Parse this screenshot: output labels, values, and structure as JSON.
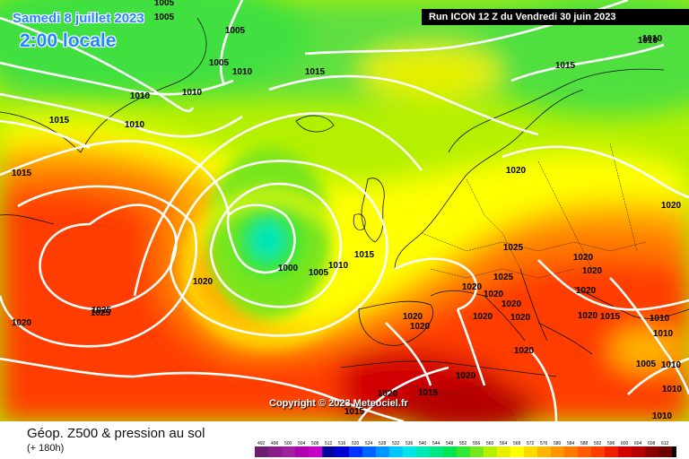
{
  "header": {
    "valid_date": "Samedi 8 juillet 2023",
    "local_time": "2:00 locale",
    "run_info": "Run ICON 12 Z du Vendredi 30 juin 2023"
  },
  "copyright": "Copyright © 2023 Meteociel.fr",
  "footer": {
    "field_title": "Géop. Z500 & pression au sol",
    "forecast_hour": "(+ 180h)"
  },
  "legend": {
    "values": [
      "492",
      "496",
      "500",
      "504",
      "508",
      "512",
      "516",
      "520",
      "524",
      "528",
      "532",
      "536",
      "540",
      "544",
      "548",
      "552",
      "556",
      "560",
      "564",
      "568",
      "572",
      "576",
      "580",
      "584",
      "588",
      "592",
      "596",
      "600",
      "604",
      "608",
      "612"
    ],
    "colors": [
      "#6e1e6e",
      "#8a1d8a",
      "#a020a0",
      "#b000b0",
      "#c800c8",
      "#0000a0",
      "#0000d0",
      "#0032ff",
      "#0064ff",
      "#0096ff",
      "#00c8ff",
      "#00e6e6",
      "#00e6b4",
      "#00e680",
      "#00e650",
      "#32e632",
      "#78e61e",
      "#b4f000",
      "#e6f000",
      "#ffff00",
      "#ffdc00",
      "#ffb400",
      "#ff9600",
      "#ff7800",
      "#ff5a00",
      "#ff3c00",
      "#f01e00",
      "#d20000",
      "#b40000",
      "#8c0000",
      "#6e0000"
    ],
    "top_color": "#000000"
  },
  "isobar_labels": [
    {
      "text": "1005"
    },
    {
      "text": "1005"
    },
    {
      "text": "1005"
    },
    {
      "text": "1010"
    },
    {
      "text": "1005"
    },
    {
      "text": "1010"
    },
    {
      "text": "1010"
    },
    {
      "text": "1010"
    },
    {
      "text": "1015"
    },
    {
      "text": "1010"
    },
    {
      "text": "1015"
    },
    {
      "text": "1015"
    },
    {
      "text": "1010"
    },
    {
      "text": "1015"
    },
    {
      "text": "1020"
    },
    {
      "text": "1020"
    },
    {
      "text": "1025"
    },
    {
      "text": "1020"
    },
    {
      "text": "1000"
    },
    {
      "text": "1005"
    },
    {
      "text": "1010"
    },
    {
      "text": "1015"
    },
    {
      "text": "1020"
    },
    {
      "text": "1025"
    },
    {
      "text": "1025"
    },
    {
      "text": "1020"
    },
    {
      "text": "1025"
    },
    {
      "text": "1020"
    },
    {
      "text": "1020"
    },
    {
      "text": "1020"
    },
    {
      "text": "1020"
    },
    {
      "text": "1020"
    },
    {
      "text": "1020"
    },
    {
      "text": "1020"
    },
    {
      "text": "1015"
    },
    {
      "text": "1010"
    },
    {
      "text": "1010"
    },
    {
      "text": "1005"
    },
    {
      "text": "1010"
    },
    {
      "text": "1020"
    },
    {
      "text": "1020"
    },
    {
      "text": "1015"
    },
    {
      "text": "1015"
    },
    {
      "text": "1010"
    },
    {
      "text": "1010"
    },
    {
      "text": "1020"
    },
    {
      "text": "1020"
    },
    {
      "text": "1020"
    },
    {
      "text": "1020"
    }
  ]
}
